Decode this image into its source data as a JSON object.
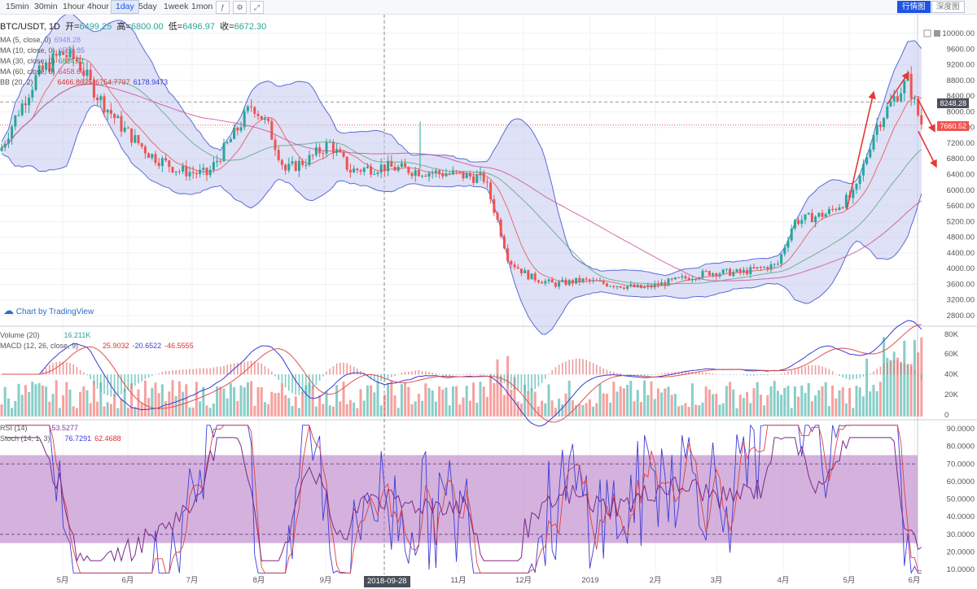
{
  "toolbar": {
    "timeframes": [
      "15min",
      "30min",
      "1hour",
      "4hour",
      "1day",
      "5day",
      "1week",
      "1mon"
    ],
    "active_timeframe": "1day",
    "views": [
      "行情图",
      "深度图"
    ],
    "active_view": "行情图"
  },
  "symbol": {
    "name": "BTC/USDT, 1D",
    "open_label": "开=",
    "open": "6499.25",
    "high_label": "高=",
    "high": "6800.00",
    "low_label": "低=",
    "low": "6496.97",
    "close_label": "收=",
    "close": "6672.30"
  },
  "indicators": {
    "ma5": {
      "label": "MA (5, close, 0)",
      "value": "6948.28"
    },
    "ma10": {
      "label": "MA (10, close, 0)",
      "value": "6552.85"
    },
    "ma30": {
      "label": "MA (30, close, 0)",
      "value": "6814.71"
    },
    "ma60": {
      "label": "MA (60, close, 0)",
      "value": "6458.60"
    },
    "bb": {
      "label": "BB (20, 2)",
      "v1": "6466.8625",
      "v2": "6754.7797",
      "v3": "6178.9473"
    },
    "volume": {
      "label": "Volume (20)",
      "value": "16.211K"
    },
    "macd": {
      "label": "MACD (12, 26, close, 9)",
      "v1": "25.9032",
      "v2": "-20.6522",
      "v3": "-46.5555"
    },
    "rsi": {
      "label": "RSI (14)",
      "value": "53.5277"
    },
    "stoch": {
      "label": "Stoch (14, 1, 3)",
      "v1": "76.7291",
      "v2": "62.4688"
    }
  },
  "branding": "Chart by TradingView",
  "price_axis": [
    "10000.00",
    "9600.00",
    "9200.00",
    "8800.00",
    "8400.00",
    "8000.00",
    "7600.00",
    "7200.00",
    "6800.00",
    "6400.00",
    "6000.00",
    "5600.00",
    "5200.00",
    "4800.00",
    "4400.00",
    "4000.00",
    "3600.00",
    "3200.00",
    "2800.00"
  ],
  "price_marker_top": "8248.28",
  "price_marker_current": "7660.52",
  "volume_axis": [
    "80K",
    "60K",
    "40K",
    "20K",
    "0"
  ],
  "osc_axis": [
    "90.0000",
    "80.0000",
    "70.0000",
    "60.0000",
    "50.0000",
    "40.0000",
    "30.0000",
    "20.0000",
    "10.0000"
  ],
  "time_axis": [
    "5月",
    "6月",
    "7月",
    "8月",
    "9月",
    "2018-09-28",
    "11月",
    "12月",
    "2019",
    "2月",
    "3月",
    "4月",
    "5月",
    "6月"
  ],
  "crosshair_date": "2018-09-28",
  "colors": {
    "up": "#26a69a",
    "down": "#ef5350",
    "band": "#c5c8ee",
    "band_line": "#5c6bd6",
    "rsi_fill": "#b77fc6"
  }
}
